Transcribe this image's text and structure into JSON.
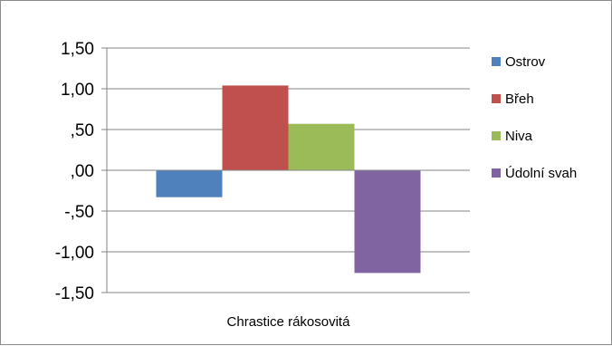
{
  "chart_data": {
    "type": "bar",
    "categories": [
      "Chrastice rákosovitá"
    ],
    "series": [
      {
        "name": "Ostrov",
        "values": [
          -0.33
        ],
        "color": "#4f81bd"
      },
      {
        "name": "Břeh",
        "values": [
          1.04
        ],
        "color": "#c0504d"
      },
      {
        "name": "Niva",
        "values": [
          0.57
        ],
        "color": "#9bbb59"
      },
      {
        "name": "Údolní svah",
        "values": [
          -1.26
        ],
        "color": "#8064a2"
      }
    ],
    "yticks": [
      1.5,
      1.0,
      0.5,
      0.0,
      -0.5,
      -1.0,
      -1.5
    ],
    "ytick_labels": [
      "1,50",
      "1,00",
      ",50",
      ",00",
      "-,50",
      "-1,00",
      "-1,50"
    ],
    "ylim": [
      -1.5,
      1.5
    ],
    "grid": true,
    "legend": "right",
    "title": "",
    "xlabel": "",
    "ylabel": ""
  }
}
